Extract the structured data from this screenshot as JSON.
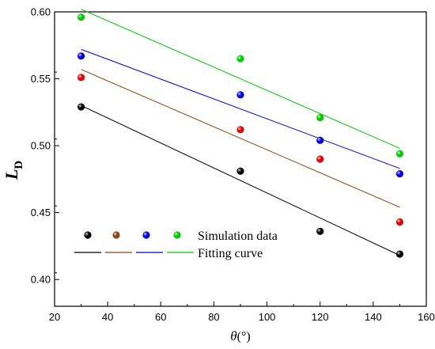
{
  "chart_data": {
    "type": "scatter",
    "xlabel": {
      "symbol": "θ",
      "unit": "(°)"
    },
    "ylabel": {
      "symbol": "L",
      "subscript": "D"
    },
    "xlim": [
      20,
      160
    ],
    "ylim": [
      0.38,
      0.6
    ],
    "x_ticks": [
      20,
      40,
      60,
      80,
      100,
      120,
      140,
      160
    ],
    "x_tick_labels": [
      "20",
      "40",
      "60",
      "80",
      "100",
      "120",
      "140",
      "160"
    ],
    "y_ticks": [
      0.4,
      0.45,
      0.5,
      0.55,
      0.6
    ],
    "y_tick_labels": [
      "0.40",
      "0.45",
      "0.50",
      "0.55",
      "0.60"
    ],
    "grid": false,
    "legend_position": "bottom-left",
    "legend": {
      "points_label": "Simulation data",
      "lines_label": "Fitting curve"
    },
    "series": [
      {
        "color": "#000000",
        "line_color": "#000000",
        "points": [
          {
            "x": 30,
            "y": 0.529
          },
          {
            "x": 90,
            "y": 0.481
          },
          {
            "x": 120,
            "y": 0.436
          },
          {
            "x": 150,
            "y": 0.419
          }
        ],
        "fit": [
          {
            "x": 30,
            "y": 0.53
          },
          {
            "x": 150,
            "y": 0.418
          }
        ]
      },
      {
        "color": "#e60000",
        "line_color": "#8b4513",
        "points": [
          {
            "x": 30,
            "y": 0.551
          },
          {
            "x": 90,
            "y": 0.512
          },
          {
            "x": 120,
            "y": 0.49
          },
          {
            "x": 150,
            "y": 0.443
          }
        ],
        "fit": [
          {
            "x": 30,
            "y": 0.557
          },
          {
            "x": 150,
            "y": 0.454
          }
        ]
      },
      {
        "color": "#0000e6",
        "line_color": "#0000e6",
        "points": [
          {
            "x": 30,
            "y": 0.567
          },
          {
            "x": 90,
            "y": 0.538
          },
          {
            "x": 120,
            "y": 0.504
          },
          {
            "x": 150,
            "y": 0.479
          }
        ],
        "fit": [
          {
            "x": 30,
            "y": 0.572
          },
          {
            "x": 150,
            "y": 0.483
          }
        ]
      },
      {
        "color": "#00cc00",
        "line_color": "#00cc00",
        "points": [
          {
            "x": 30,
            "y": 0.596
          },
          {
            "x": 90,
            "y": 0.565
          },
          {
            "x": 120,
            "y": 0.521
          },
          {
            "x": 150,
            "y": 0.494
          }
        ],
        "fit": [
          {
            "x": 30,
            "y": 0.602
          },
          {
            "x": 150,
            "y": 0.498
          }
        ]
      }
    ],
    "legend_marker_colors": [
      "#000000",
      "#8b4513",
      "#0000e6",
      "#00cc00"
    ]
  }
}
